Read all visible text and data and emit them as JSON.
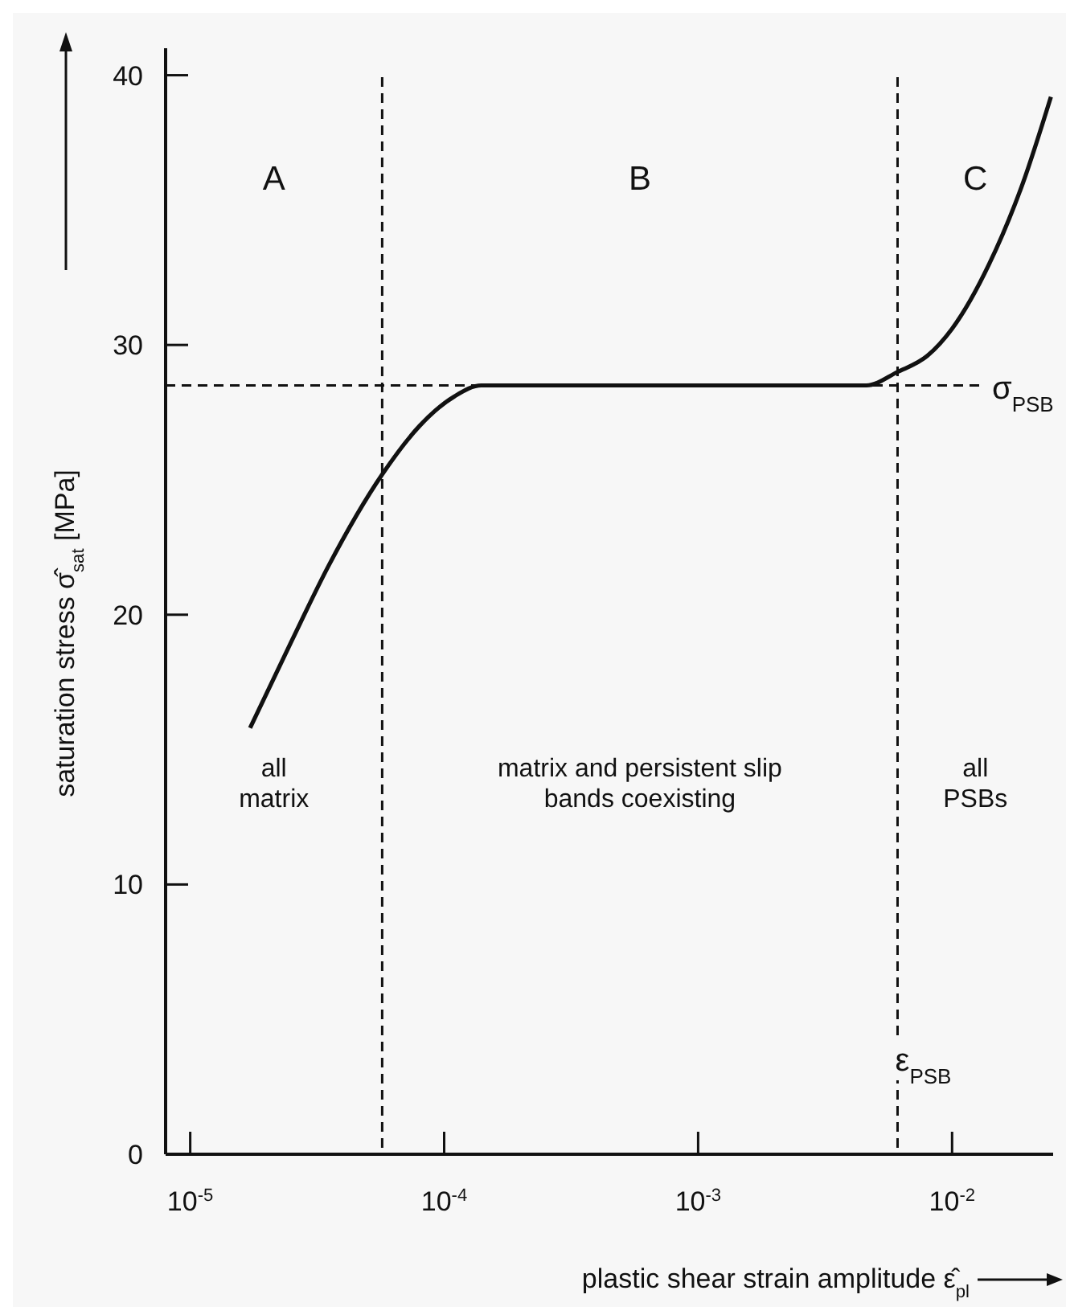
{
  "chart_data": {
    "type": "line",
    "xlabel": "plastic shear strain amplitude ε̂$_{pl}$",
    "ylabel": "saturation stress σ̂$_{sat}$ [MPa]",
    "log": "x",
    "xlim": [
      8e-06,
      0.025
    ],
    "xticks": [
      {
        "value": 1e-05,
        "label": "10$^{-5}$"
      },
      {
        "value": 0.0001,
        "label": "10$^{-4}$"
      },
      {
        "value": 0.001,
        "label": "10$^{-3}$"
      },
      {
        "value": 0.01,
        "label": "10$^{-2}$"
      }
    ],
    "ylim": [
      0,
      41
    ],
    "yticks": [
      0,
      10,
      20,
      30,
      40
    ],
    "grid": false,
    "marker": "none",
    "line_style": "solid",
    "series": [
      {
        "color": "#111111",
        "x": [
          1.72e-05,
          2.5e-05,
          3.5e-05,
          5.7e-05,
          8e-05,
          0.00011,
          0.00014,
          0.001,
          0.0046,
          0.0061,
          0.008,
          0.01,
          0.014,
          0.019,
          0.0245
        ],
        "values": [
          15.8,
          19,
          21.8,
          25.2,
          27,
          28.1,
          28.5,
          28.5,
          28.5,
          29,
          29.6,
          30.6,
          33,
          36,
          39.2
        ]
      }
    ],
    "ref_lines": [
      {
        "axis": "y",
        "value": 28.5,
        "label": "σ$_{PSB}$",
        "line_style": "dashed"
      },
      {
        "axis": "x",
        "value": 5.7e-05,
        "label": null,
        "line_style": "dashed"
      },
      {
        "axis": "x",
        "value": 0.0061,
        "label": "ε$_{PSB}$",
        "line_style": "dashed"
      }
    ],
    "annotations": [
      "A",
      "B",
      "C",
      "all\nmatrix",
      "matrix and persistent slip\nbands coexisting",
      "all\nPSBs"
    ]
  }
}
